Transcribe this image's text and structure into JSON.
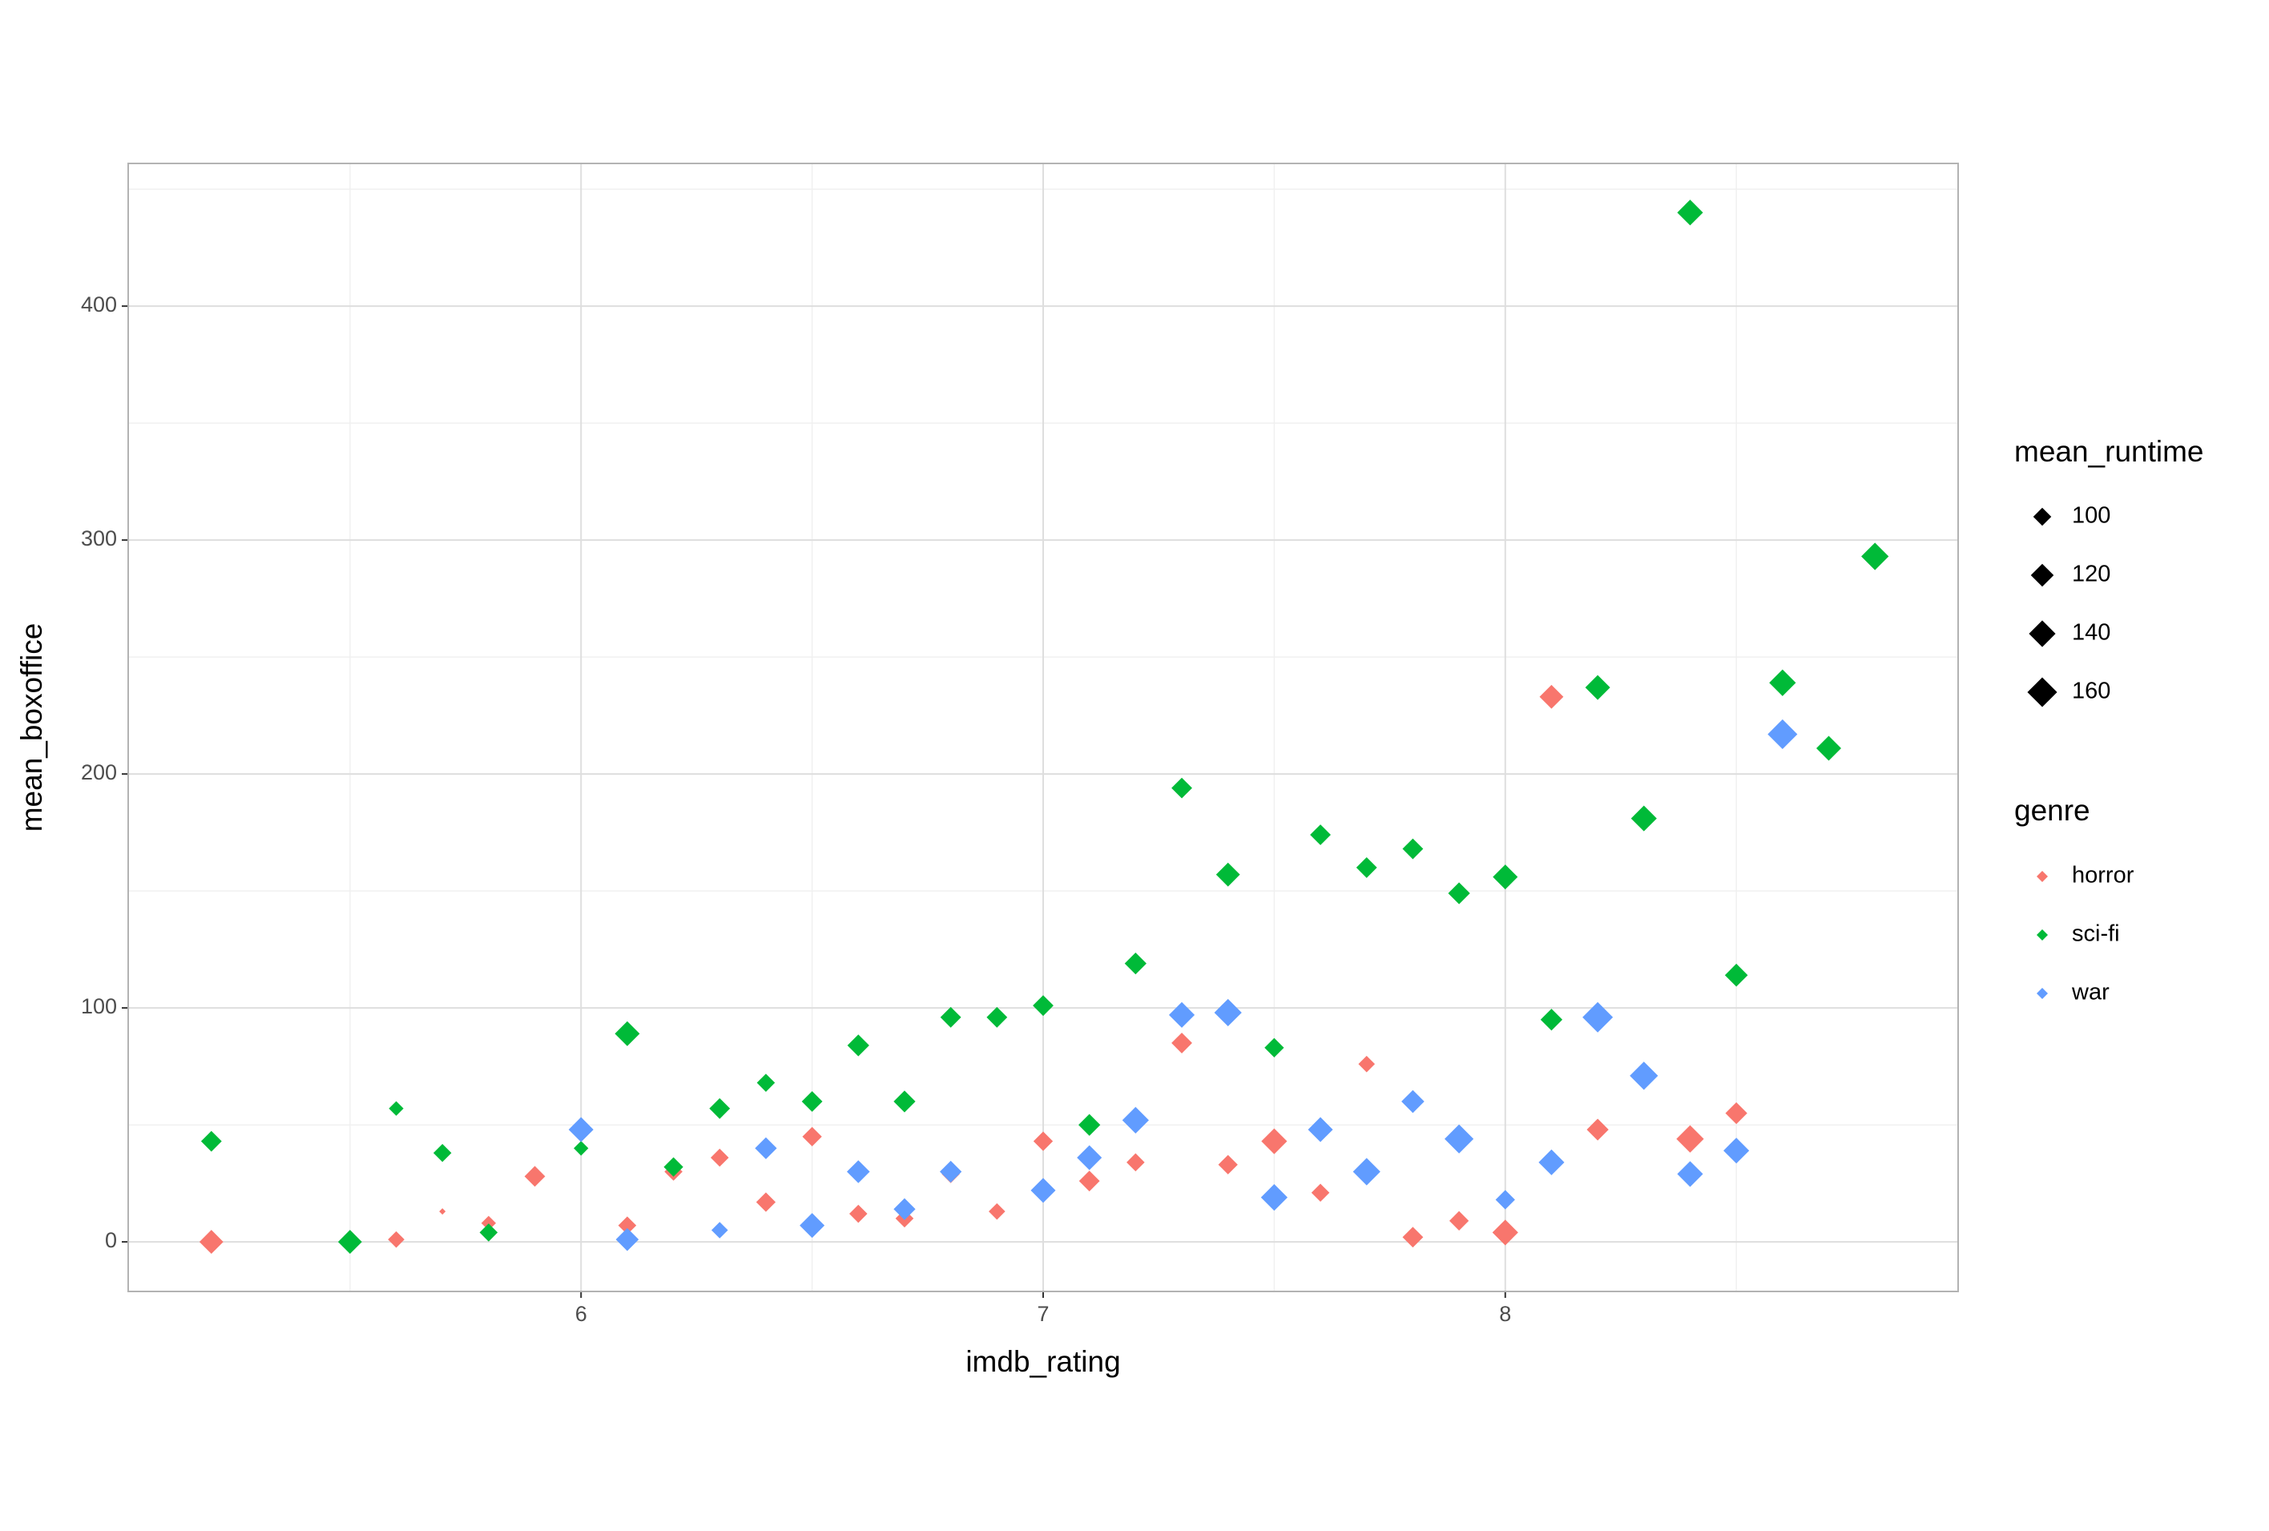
{
  "chart_data": {
    "type": "scatter",
    "xlabel": "imdb_rating",
    "ylabel": "mean_boxoffice",
    "xlim": [
      5.02,
      8.98
    ],
    "xticks": [
      6,
      7,
      8
    ],
    "ylim": [
      -21.2,
      461
    ],
    "yticks": [
      0,
      100,
      200,
      300,
      400
    ],
    "grid": true,
    "size_legend": {
      "title": "mean_runtime",
      "values": [
        100,
        120,
        140,
        160
      ]
    },
    "legend_title": "genre",
    "series": [
      {
        "name": "horror",
        "color": "#F8766D",
        "x": [
          5.2,
          5.6,
          5.7,
          5.8,
          5.9,
          6.1,
          6.2,
          6.3,
          6.4,
          6.5,
          6.6,
          6.7,
          6.8,
          6.9,
          7.0,
          7.1,
          7.2,
          7.3,
          7.4,
          7.5,
          7.6,
          7.7,
          7.8,
          7.9,
          8.0,
          8.1,
          8.2,
          8.4,
          8.5
        ],
        "values": [
          0,
          1,
          13,
          8,
          28,
          7,
          30,
          36,
          17,
          45,
          12,
          10,
          29,
          13,
          43,
          26,
          34,
          85,
          33,
          43,
          21,
          76,
          2,
          9,
          4,
          233,
          48,
          44,
          55
        ],
        "sizes": [
          125,
          95,
          80,
          90,
          110,
          100,
          100,
          100,
          105,
          105,
          100,
          100,
          100,
          95,
          105,
          110,
          100,
          110,
          105,
          135,
          100,
          95,
          110,
          105,
          135,
          125,
          115,
          145,
          115
        ]
      },
      {
        "name": "sci-fi",
        "color": "#00BA38",
        "x": [
          5.2,
          5.5,
          5.6,
          5.7,
          5.8,
          6.0,
          6.1,
          6.2,
          6.3,
          6.4,
          6.5,
          6.6,
          6.7,
          6.8,
          6.9,
          7.0,
          7.1,
          7.2,
          7.3,
          7.4,
          7.5,
          7.6,
          7.7,
          7.8,
          7.9,
          8.0,
          8.1,
          8.2,
          8.3,
          8.4,
          8.5,
          8.6,
          8.7,
          8.8
        ],
        "values": [
          43,
          0,
          57,
          38,
          4,
          40,
          89,
          32,
          57,
          68,
          60,
          84,
          60,
          96,
          96,
          101,
          50,
          119,
          194,
          157,
          83,
          174,
          160,
          168,
          149,
          156,
          95,
          237,
          181,
          440,
          114,
          239,
          211,
          293
        ],
        "sizes": [
          110,
          125,
          90,
          100,
          100,
          90,
          130,
          105,
          110,
          100,
          110,
          115,
          115,
          110,
          110,
          110,
          115,
          115,
          110,
          125,
          105,
          110,
          110,
          110,
          115,
          130,
          115,
          130,
          135,
          135,
          120,
          140,
          130,
          145
        ]
      },
      {
        "name": "war",
        "color": "#619CFF",
        "x": [
          6.0,
          6.1,
          6.3,
          6.4,
          6.5,
          6.6,
          6.7,
          6.8,
          7.0,
          7.1,
          7.2,
          7.3,
          7.4,
          7.5,
          7.6,
          7.7,
          7.8,
          7.9,
          8.0,
          8.1,
          8.2,
          8.3,
          8.4,
          8.5,
          8.6
        ],
        "values": [
          48,
          1,
          5,
          40,
          7,
          30,
          14,
          30,
          22,
          36,
          52,
          97,
          98,
          19,
          48,
          30,
          60,
          44,
          18,
          34,
          96,
          71,
          29,
          39,
          217
        ],
        "sizes": [
          130,
          120,
          95,
          115,
          130,
          120,
          115,
          115,
          130,
          130,
          140,
          135,
          145,
          140,
          130,
          145,
          120,
          155,
          105,
          135,
          165,
          150,
          135,
          135,
          160
        ]
      }
    ]
  }
}
